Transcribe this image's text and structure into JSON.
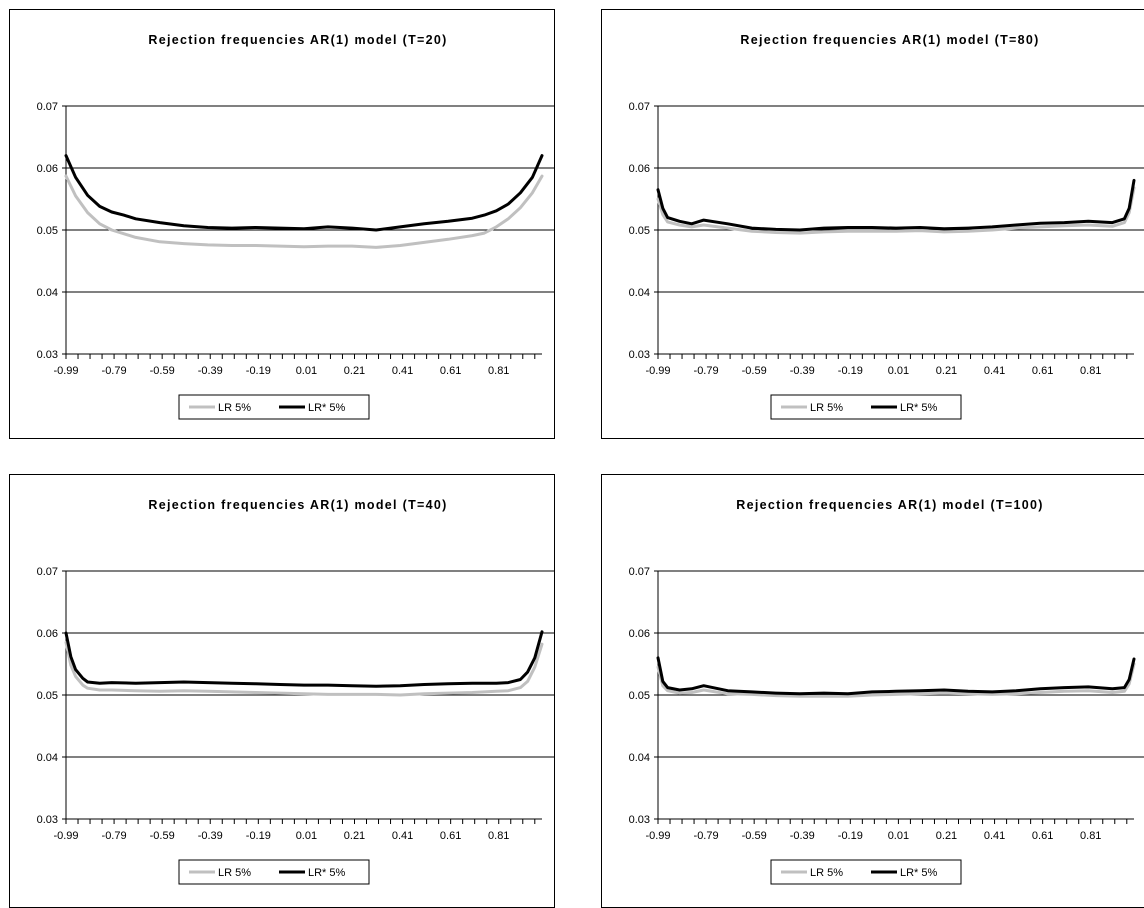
{
  "charts": [
    {
      "type": "line",
      "title": "Rejection frequencies AR(1) model (T=20)",
      "ylim": [
        0.03,
        0.07
      ],
      "yticks": [
        "0.03",
        "0.04",
        "0.05",
        "0.06",
        "0.07"
      ],
      "xlim": [
        -0.99,
        0.99
      ],
      "xticks": [
        "-0.99",
        "-0.79",
        "-0.59",
        "-0.39",
        "-0.19",
        "0.01",
        "0.21",
        "0.41",
        "0.61",
        "0.81"
      ],
      "gridlines": [
        0.04,
        0.05,
        0.06,
        0.07
      ],
      "legend_position": "bottom",
      "series": [
        {
          "name": "LR 5%",
          "color": "#c0c0c0",
          "x": [
            -0.99,
            -0.95,
            -0.9,
            -0.85,
            -0.8,
            -0.75,
            -0.7,
            -0.6,
            -0.5,
            -0.4,
            -0.3,
            -0.2,
            -0.1,
            0.0,
            0.1,
            0.2,
            0.3,
            0.4,
            0.5,
            0.6,
            0.7,
            0.75,
            0.8,
            0.85,
            0.9,
            0.95,
            0.99
          ],
          "values": [
            0.0587,
            0.0555,
            0.0528,
            0.051,
            0.05,
            0.0494,
            0.0488,
            0.0481,
            0.0478,
            0.0476,
            0.0475,
            0.0475,
            0.0474,
            0.0473,
            0.0474,
            0.0474,
            0.0472,
            0.0475,
            0.048,
            0.0485,
            0.0491,
            0.0495,
            0.0505,
            0.0518,
            0.0536,
            0.056,
            0.0587
          ]
        },
        {
          "name": "LR* 5%",
          "color": "#000000",
          "x": [
            -0.99,
            -0.95,
            -0.9,
            -0.85,
            -0.8,
            -0.75,
            -0.7,
            -0.6,
            -0.5,
            -0.4,
            -0.3,
            -0.2,
            -0.1,
            0.0,
            0.1,
            0.2,
            0.3,
            0.4,
            0.5,
            0.6,
            0.7,
            0.75,
            0.8,
            0.85,
            0.9,
            0.95,
            0.99
          ],
          "values": [
            0.062,
            0.0585,
            0.0556,
            0.0538,
            0.0529,
            0.0524,
            0.0518,
            0.0512,
            0.0507,
            0.0504,
            0.0503,
            0.0504,
            0.0503,
            0.0502,
            0.0505,
            0.0503,
            0.05,
            0.0505,
            0.051,
            0.0514,
            0.0519,
            0.0524,
            0.0531,
            0.0542,
            0.056,
            0.0585,
            0.062
          ]
        }
      ]
    },
    {
      "type": "line",
      "title": "Rejection frequencies AR(1) model (T=80)",
      "ylim": [
        0.03,
        0.07
      ],
      "yticks": [
        "0.03",
        "0.04",
        "0.05",
        "0.06",
        "0.07"
      ],
      "xlim": [
        -0.99,
        0.99
      ],
      "xticks": [
        "-0.99",
        "-0.79",
        "-0.59",
        "-0.39",
        "-0.19",
        "0.01",
        "0.21",
        "0.41",
        "0.61",
        "0.81"
      ],
      "gridlines": [
        0.04,
        0.05,
        0.06,
        0.07
      ],
      "legend_position": "bottom",
      "series": [
        {
          "name": "LR 5%",
          "color": "#c0c0c0",
          "x": [
            -0.99,
            -0.97,
            -0.95,
            -0.9,
            -0.85,
            -0.8,
            -0.7,
            -0.6,
            -0.5,
            -0.4,
            -0.3,
            -0.2,
            -0.1,
            0.0,
            0.1,
            0.2,
            0.3,
            0.4,
            0.5,
            0.6,
            0.7,
            0.8,
            0.9,
            0.95,
            0.97,
            0.99
          ],
          "values": [
            0.055,
            0.0525,
            0.0513,
            0.0508,
            0.0505,
            0.0508,
            0.0503,
            0.0498,
            0.0496,
            0.0495,
            0.0497,
            0.0498,
            0.0498,
            0.0498,
            0.0499,
            0.0497,
            0.0498,
            0.05,
            0.0503,
            0.0505,
            0.0507,
            0.0508,
            0.0506,
            0.0512,
            0.0528,
            0.0568
          ]
        },
        {
          "name": "LR* 5%",
          "color": "#000000",
          "x": [
            -0.99,
            -0.97,
            -0.95,
            -0.9,
            -0.85,
            -0.8,
            -0.7,
            -0.6,
            -0.5,
            -0.4,
            -0.3,
            -0.2,
            -0.1,
            0.0,
            0.1,
            0.2,
            0.3,
            0.4,
            0.5,
            0.6,
            0.7,
            0.8,
            0.9,
            0.95,
            0.97,
            0.99
          ],
          "values": [
            0.0565,
            0.0535,
            0.052,
            0.0514,
            0.051,
            0.0516,
            0.051,
            0.0503,
            0.0501,
            0.05,
            0.0503,
            0.0504,
            0.0504,
            0.0503,
            0.0504,
            0.0502,
            0.0503,
            0.0505,
            0.0508,
            0.0511,
            0.0512,
            0.0514,
            0.0512,
            0.0518,
            0.0535,
            0.058
          ]
        }
      ]
    },
    {
      "type": "line",
      "title": "Rejection frequencies AR(1) model (T=40)",
      "ylim": [
        0.03,
        0.07
      ],
      "yticks": [
        "0.03",
        "0.04",
        "0.05",
        "0.06",
        "0.07"
      ],
      "xlim": [
        -0.99,
        0.99
      ],
      "xticks": [
        "-0.99",
        "-0.79",
        "-0.59",
        "-0.39",
        "-0.19",
        "0.01",
        "0.21",
        "0.41",
        "0.61",
        "0.81"
      ],
      "gridlines": [
        0.04,
        0.05,
        0.06,
        0.07
      ],
      "legend_position": "bottom",
      "series": [
        {
          "name": "LR 5%",
          "color": "#c0c0c0",
          "x": [
            -0.99,
            -0.97,
            -0.95,
            -0.92,
            -0.9,
            -0.85,
            -0.8,
            -0.7,
            -0.6,
            -0.5,
            -0.4,
            -0.3,
            -0.2,
            -0.1,
            0.0,
            0.1,
            0.2,
            0.3,
            0.4,
            0.5,
            0.6,
            0.7,
            0.8,
            0.85,
            0.9,
            0.93,
            0.96,
            0.99
          ],
          "values": [
            0.0585,
            0.0548,
            0.053,
            0.0516,
            0.0511,
            0.0508,
            0.0508,
            0.0507,
            0.0506,
            0.0507,
            0.0506,
            0.0505,
            0.0504,
            0.0503,
            0.0502,
            0.0501,
            0.0501,
            0.0501,
            0.05,
            0.0502,
            0.0503,
            0.0504,
            0.0506,
            0.0507,
            0.0512,
            0.0522,
            0.0545,
            0.0582
          ]
        },
        {
          "name": "LR* 5%",
          "color": "#000000",
          "x": [
            -0.99,
            -0.97,
            -0.95,
            -0.92,
            -0.9,
            -0.85,
            -0.8,
            -0.7,
            -0.6,
            -0.5,
            -0.4,
            -0.3,
            -0.2,
            -0.1,
            0.0,
            0.1,
            0.2,
            0.3,
            0.4,
            0.5,
            0.6,
            0.7,
            0.8,
            0.85,
            0.9,
            0.93,
            0.96,
            0.99
          ],
          "values": [
            0.06,
            0.0562,
            0.0541,
            0.0527,
            0.0521,
            0.0519,
            0.052,
            0.0519,
            0.052,
            0.0521,
            0.052,
            0.0519,
            0.0518,
            0.0517,
            0.0516,
            0.0516,
            0.0515,
            0.0514,
            0.0515,
            0.0517,
            0.0518,
            0.0519,
            0.0519,
            0.052,
            0.0525,
            0.0537,
            0.056,
            0.0602
          ]
        }
      ]
    },
    {
      "type": "line",
      "title": "Rejection frequencies AR(1) model (T=100)",
      "ylim": [
        0.03,
        0.07
      ],
      "yticks": [
        "0.03",
        "0.04",
        "0.05",
        "0.06",
        "0.07"
      ],
      "xlim": [
        -0.99,
        0.99
      ],
      "xticks": [
        "-0.99",
        "-0.79",
        "-0.59",
        "-0.39",
        "-0.19",
        "0.01",
        "0.21",
        "0.41",
        "0.61",
        "0.81"
      ],
      "gridlines": [
        0.04,
        0.05,
        0.06,
        0.07
      ],
      "legend_position": "bottom",
      "series": [
        {
          "name": "LR 5%",
          "color": "#c0c0c0",
          "x": [
            -0.99,
            -0.97,
            -0.95,
            -0.9,
            -0.85,
            -0.8,
            -0.7,
            -0.6,
            -0.5,
            -0.4,
            -0.3,
            -0.2,
            -0.1,
            0.0,
            0.1,
            0.2,
            0.3,
            0.4,
            0.5,
            0.6,
            0.7,
            0.8,
            0.9,
            0.95,
            0.97,
            0.99
          ],
          "values": [
            0.0545,
            0.0515,
            0.0507,
            0.0503,
            0.0504,
            0.0508,
            0.0502,
            0.0501,
            0.0499,
            0.0498,
            0.0498,
            0.0498,
            0.05,
            0.0501,
            0.0502,
            0.0503,
            0.0502,
            0.0501,
            0.0502,
            0.0504,
            0.0506,
            0.0507,
            0.0504,
            0.0506,
            0.0518,
            0.055
          ]
        },
        {
          "name": "LR* 5%",
          "color": "#000000",
          "x": [
            -0.99,
            -0.97,
            -0.95,
            -0.9,
            -0.85,
            -0.8,
            -0.7,
            -0.6,
            -0.5,
            -0.4,
            -0.3,
            -0.2,
            -0.1,
            0.0,
            0.1,
            0.2,
            0.3,
            0.4,
            0.5,
            0.6,
            0.7,
            0.8,
            0.9,
            0.95,
            0.97,
            0.99
          ],
          "values": [
            0.056,
            0.0522,
            0.0512,
            0.0508,
            0.051,
            0.0515,
            0.0507,
            0.0505,
            0.0503,
            0.0502,
            0.0503,
            0.0502,
            0.0505,
            0.0506,
            0.0507,
            0.0508,
            0.0506,
            0.0505,
            0.0507,
            0.051,
            0.0512,
            0.0513,
            0.051,
            0.0512,
            0.0525,
            0.0558
          ]
        }
      ]
    }
  ]
}
